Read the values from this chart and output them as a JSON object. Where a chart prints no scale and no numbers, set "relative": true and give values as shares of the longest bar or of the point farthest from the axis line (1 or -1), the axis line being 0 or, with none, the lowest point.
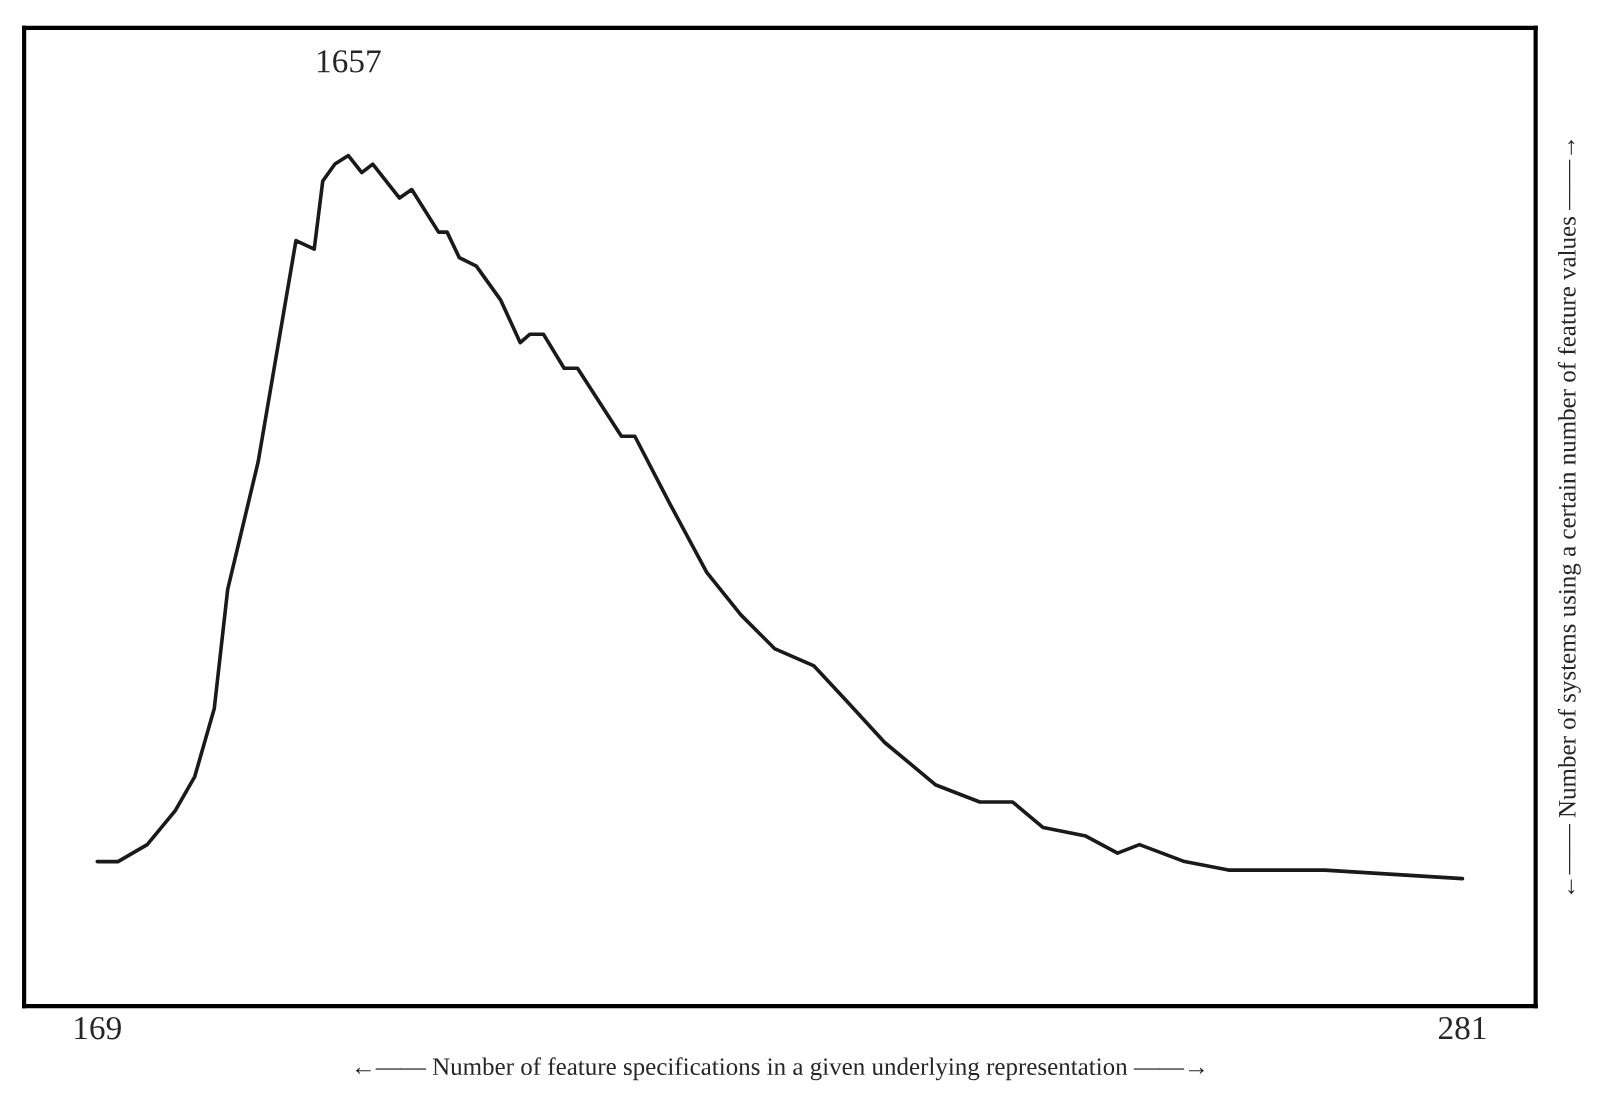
{
  "chart_data": {
    "type": "line",
    "relative": true,
    "xlabel": "←—— Number of feature specifications in a given underlying representation ——→",
    "ylabel": "←—— Number of systems using a certain number of feature values ——→",
    "x": [
      169,
      170.7,
      173.1,
      175.4,
      177.0,
      178.6,
      179.7,
      182.2,
      185.3,
      186.8,
      187.5,
      188.5,
      189.6,
      190.7,
      191.6,
      193.8,
      194.8,
      197.0,
      197.7,
      198.7,
      200.1,
      202.1,
      203.7,
      204.5,
      205.6,
      207.3,
      208.4,
      212.0,
      213.1,
      216.0,
      219.0,
      221.8,
      224.6,
      227.8,
      230.4,
      233.6,
      237.8,
      241.4,
      244.1,
      246.6,
      250.1,
      252.7,
      254.5,
      258.2,
      261.8,
      269.7,
      281
    ],
    "series": [
      {
        "color": "#1a1a1a",
        "values": [
          0.17,
          0.17,
          0.19,
          0.23,
          0.27,
          0.35,
          0.49,
          0.64,
          0.9,
          0.89,
          0.97,
          0.99,
          1,
          0.98,
          0.99,
          0.95,
          0.96,
          0.91,
          0.91,
          0.88,
          0.87,
          0.83,
          0.78,
          0.79,
          0.79,
          0.75,
          0.75,
          0.67,
          0.67,
          0.59,
          0.51,
          0.46,
          0.42,
          0.4,
          0.36,
          0.31,
          0.26,
          0.24,
          0.24,
          0.21,
          0.2,
          0.18,
          0.19,
          0.17,
          0.16,
          0.16,
          0.15
        ]
      }
    ],
    "xlim": [
      163,
      287
    ],
    "xticks": [
      169,
      281
    ],
    "annotations": [
      {
        "text": "1657",
        "x": 189.6,
        "y": 1
      }
    ],
    "grid": false,
    "legend": false,
    "marker": "none",
    "line_style": "solid"
  }
}
